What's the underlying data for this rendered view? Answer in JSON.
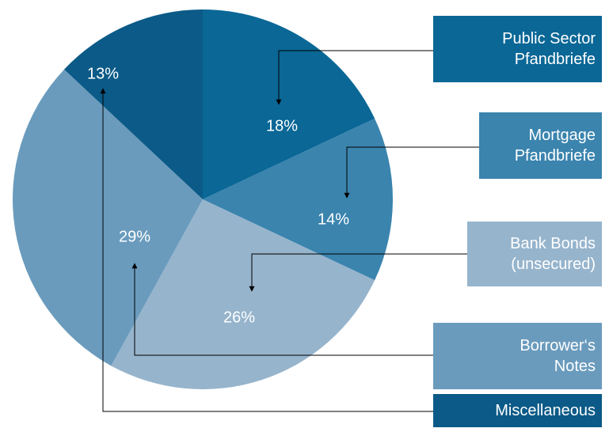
{
  "chart_data": {
    "type": "pie",
    "categories": [
      "Public Sector Pfandbriefe",
      "Mortgage Pfandbriefe",
      "Bank Bonds (unsecured)",
      "Borrower‘s Notes",
      "Miscellaneous"
    ],
    "values": [
      18,
      14,
      26,
      29,
      13
    ],
    "value_labels": [
      "18%",
      "14%",
      "26%",
      "29%",
      "13%"
    ],
    "colors": [
      "#0a6796",
      "#3a84ae",
      "#96b4cc",
      "#6a9bbd",
      "#0b5a87"
    ]
  }
}
